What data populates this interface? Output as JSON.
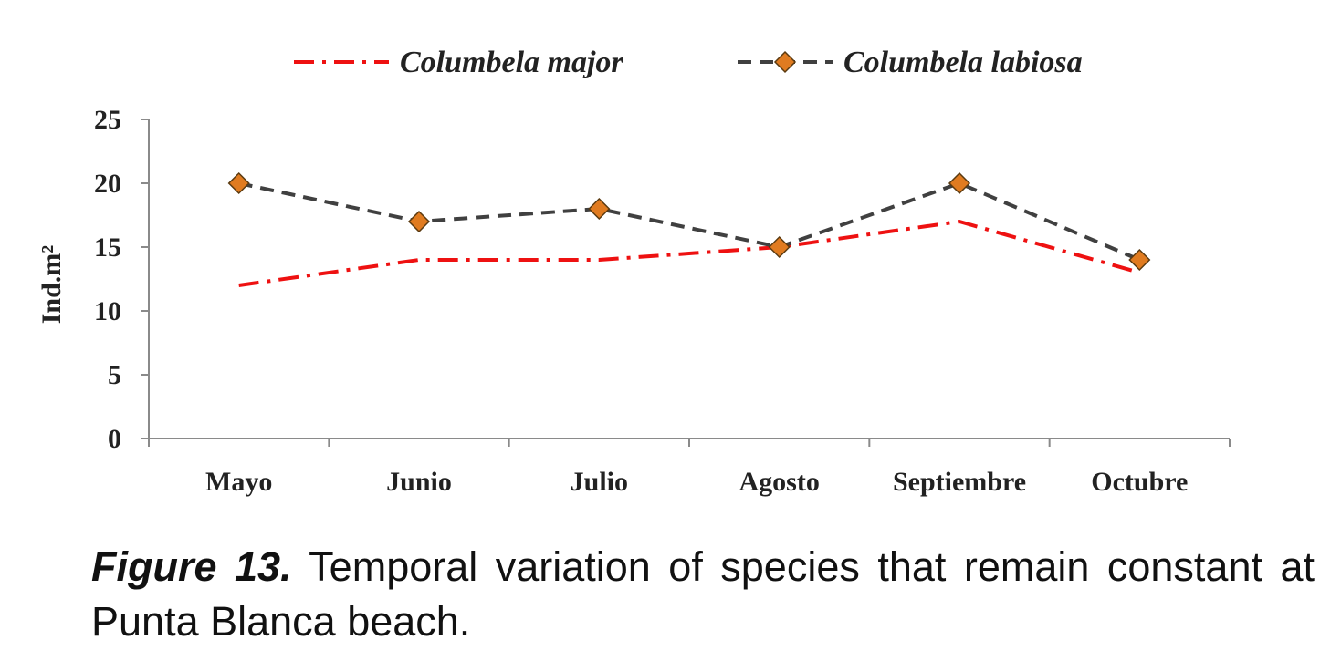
{
  "chart_data": {
    "type": "line",
    "categories": [
      "Mayo",
      "Junio",
      "Julio",
      "Agosto",
      "Septiembre",
      "Octubre"
    ],
    "series": [
      {
        "name": "Columbela major",
        "values": [
          12,
          14,
          14,
          15,
          17,
          13
        ],
        "color": "#ee1111",
        "dash": "dash-dot",
        "marker": "none"
      },
      {
        "name": "Columbela labiosa",
        "values": [
          20,
          17,
          18,
          15,
          20,
          14
        ],
        "color": "#404040",
        "dash": "dash",
        "marker": "diamond",
        "marker_color": "#e07b20"
      }
    ],
    "ylabel": "Ind.m²",
    "xlabel": "",
    "ylim": [
      0,
      25
    ],
    "yticks": [
      0,
      5,
      10,
      15,
      20,
      25
    ],
    "grid": false,
    "legend_position": "top"
  },
  "caption": {
    "label": "Figure 13.",
    "text": " Temporal variation of species that remain constant at Punta Blanca beach."
  }
}
